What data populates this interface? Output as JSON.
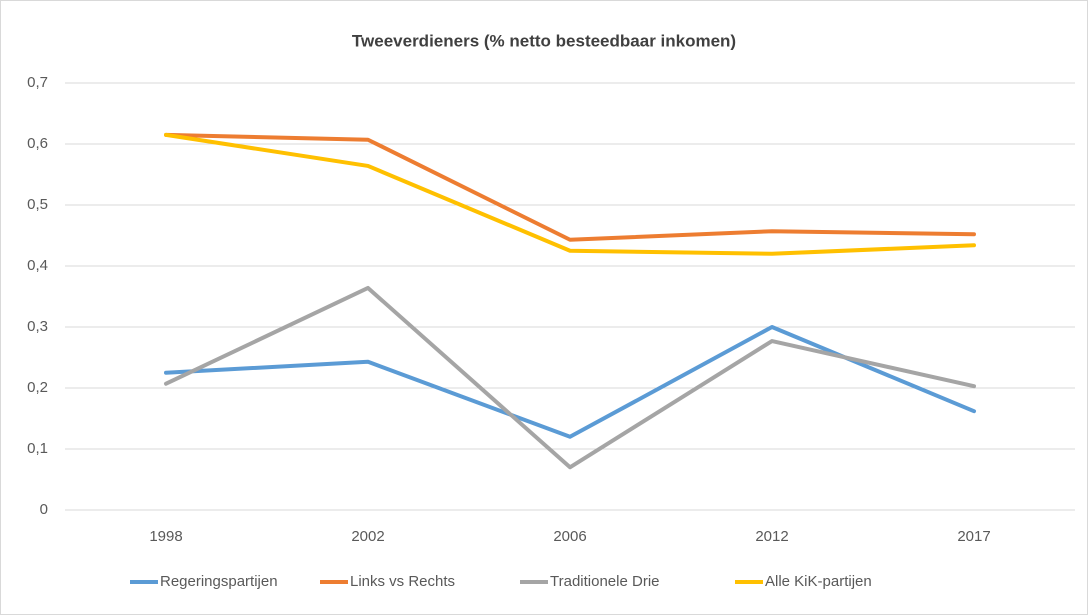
{
  "chart_data": {
    "type": "line",
    "title": "Tweeverdieners (% netto besteedbaar inkomen)",
    "categories": [
      "1998",
      "2002",
      "2006",
      "2012",
      "2017"
    ],
    "series": [
      {
        "name": "Regeringspartijen",
        "color": "#5b9bd5",
        "values": [
          0.225,
          0.243,
          0.12,
          0.3,
          0.162
        ]
      },
      {
        "name": "Links vs Rechts",
        "color": "#ed7d31",
        "values": [
          0.615,
          0.607,
          0.443,
          0.457,
          0.452
        ]
      },
      {
        "name": "Traditionele Drie",
        "color": "#a5a5a5",
        "values": [
          0.207,
          0.364,
          0.07,
          0.277,
          0.203
        ]
      },
      {
        "name": "Alle KiK-partijen",
        "color": "#ffc000",
        "values": [
          0.615,
          0.564,
          0.425,
          0.42,
          0.434
        ]
      }
    ],
    "ylim": [
      0,
      0.7
    ],
    "yticks": [
      0,
      {
        "value": 0.1,
        "label": "0,1"
      },
      {
        "value": 0.2,
        "label": "0,2"
      },
      {
        "value": 0.3,
        "label": "0,3"
      },
      {
        "value": 0.4,
        "label": "0,4"
      },
      {
        "value": 0.5,
        "label": "0,5"
      },
      {
        "value": 0.6,
        "label": "0,6"
      },
      {
        "value": 0.7,
        "label": "0,7"
      }
    ],
    "grid": true,
    "legend": "bottom"
  }
}
